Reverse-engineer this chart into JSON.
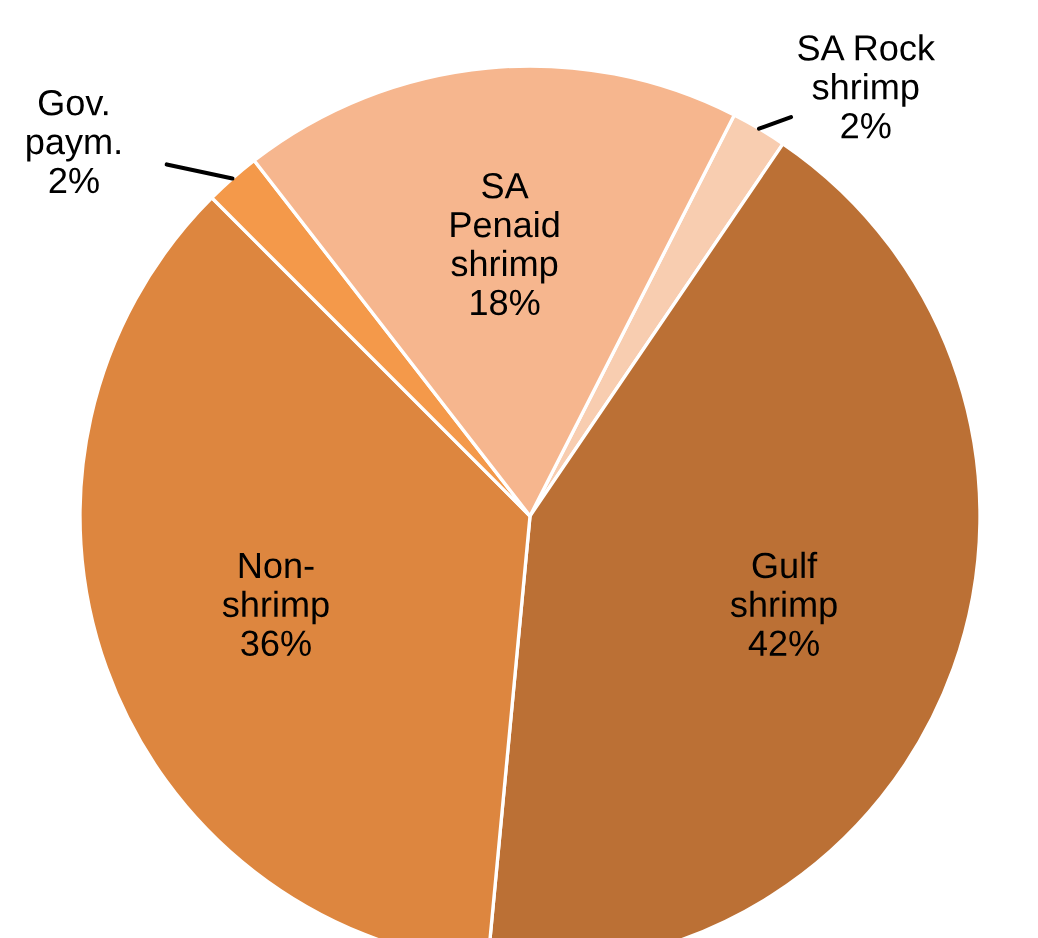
{
  "chart_data": {
    "type": "pie",
    "categories": [
      "SA Rock\nshrimp",
      "Gulf\nshrimp",
      "Non-\nshrimp",
      "Gov.\npaym.",
      "SA\nPenaid\nshrimp"
    ],
    "values": [
      2,
      42,
      36,
      2,
      18
    ],
    "colors": [
      "#f8cdb0",
      "#bb7035",
      "#dd863f",
      "#f4994a",
      "#f6b68e"
    ],
    "value_labels": [
      "2%",
      "42%",
      "36%",
      "2%",
      "18%"
    ]
  }
}
